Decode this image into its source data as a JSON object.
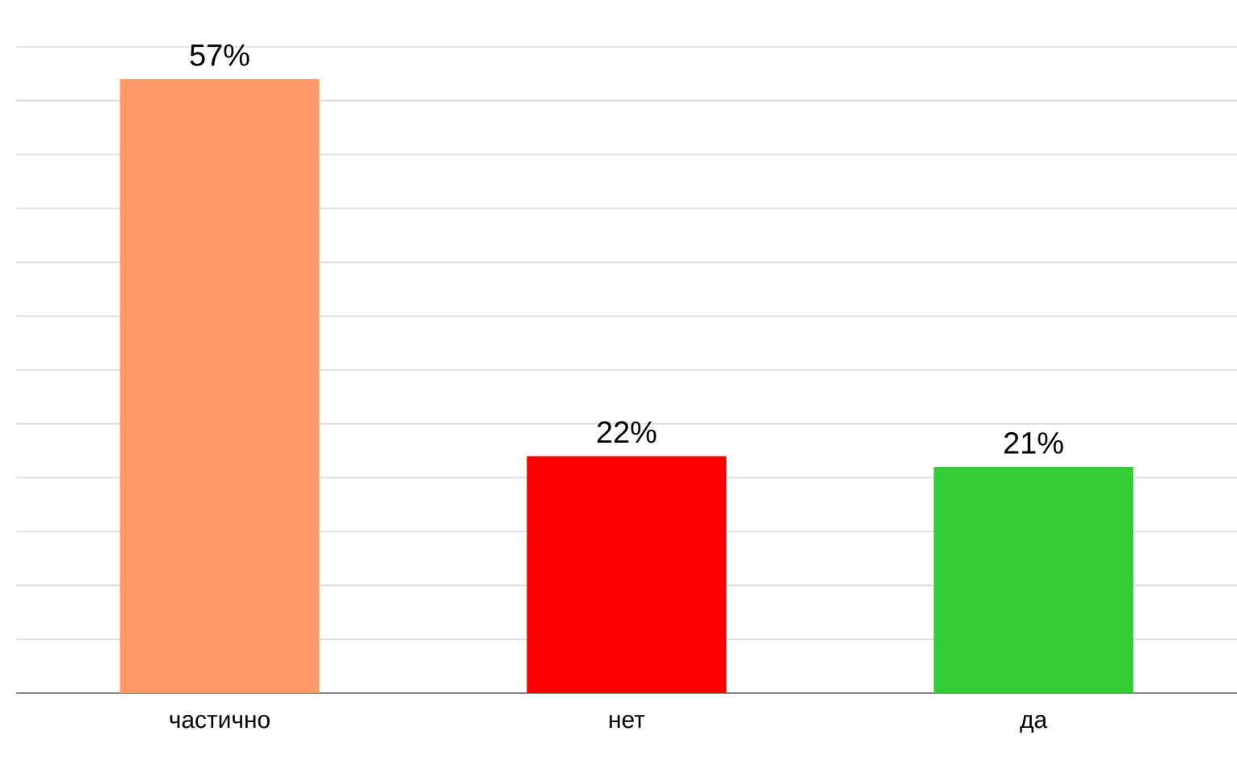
{
  "chart_data": {
    "type": "bar",
    "categories": [
      "частично",
      "нет",
      "да"
    ],
    "values": [
      57,
      22,
      21
    ],
    "colors": [
      "#ff9966",
      "#ff0000",
      "#33cc33"
    ],
    "value_labels": [
      "57%",
      "22%",
      "21%"
    ],
    "ylim": [
      0,
      60
    ],
    "grid": "y",
    "tick_labels": "x"
  }
}
